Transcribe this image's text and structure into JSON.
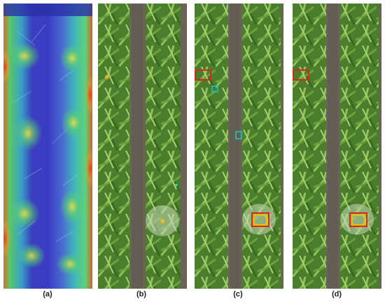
{
  "panels": [
    {
      "label": "(a)",
      "type": "attention-heatmap"
    },
    {
      "label": "(b)",
      "type": "aerial-crop-photo",
      "markers": [
        "star",
        "star",
        "dot"
      ]
    },
    {
      "label": "(c)",
      "type": "aerial-crop-photo-detections",
      "box_colors": [
        "#d42a1a",
        "#e0b000",
        "#22b8b8"
      ]
    },
    {
      "label": "(d)",
      "type": "aerial-crop-photo-detections",
      "box_colors": [
        "#d42a1a",
        "#e0b000"
      ]
    }
  ],
  "colors": {
    "heatmap_blue": "#2a2fc8",
    "heatmap_green": "#3fd07a",
    "heatmap_red": "#e23a18",
    "plant_green": "#4e8a32",
    "soil": "#6b6258",
    "box_red": "#d42a1a",
    "box_yellow": "#f0c000",
    "box_cyan": "#1fc6c6"
  }
}
